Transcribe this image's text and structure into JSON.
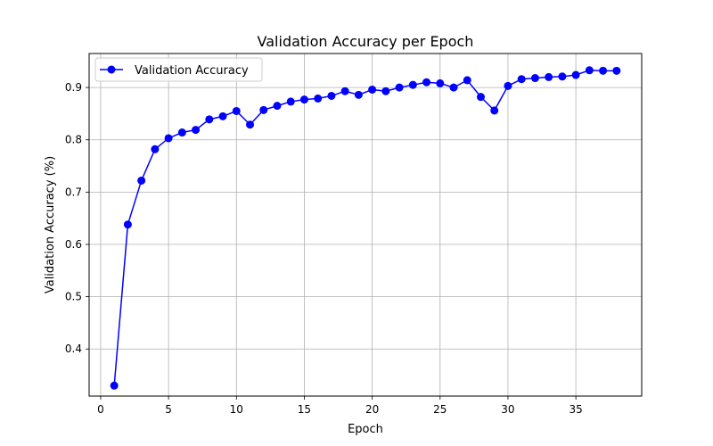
{
  "chart_data": {
    "type": "line",
    "title": "Validation Accuracy per Epoch",
    "xlabel": "Epoch",
    "ylabel": "Validation Accuracy (%)",
    "xlim": [
      -0.85,
      39.85
    ],
    "ylim": [
      0.31,
      0.965
    ],
    "xticks": [
      0,
      5,
      10,
      15,
      20,
      25,
      30,
      35
    ],
    "yticks": [
      0.4,
      0.5,
      0.6,
      0.7,
      0.8,
      0.9
    ],
    "ytick_labels": [
      "0.4",
      "0.5",
      "0.6",
      "0.7",
      "0.8",
      "0.9"
    ],
    "grid": true,
    "legend": "top-left",
    "series": [
      {
        "name": "Validation Accuracy",
        "color": "#0000ff",
        "marker": "circle",
        "x": [
          1,
          2,
          3,
          4,
          5,
          6,
          7,
          8,
          9,
          10,
          11,
          12,
          13,
          14,
          15,
          16,
          17,
          18,
          19,
          20,
          21,
          22,
          23,
          24,
          25,
          26,
          27,
          28,
          29,
          30,
          31,
          32,
          33,
          34,
          35,
          36,
          37,
          38
        ],
        "y": [
          0.33,
          0.638,
          0.722,
          0.782,
          0.803,
          0.814,
          0.819,
          0.839,
          0.845,
          0.855,
          0.829,
          0.857,
          0.865,
          0.873,
          0.877,
          0.879,
          0.884,
          0.893,
          0.886,
          0.896,
          0.893,
          0.9,
          0.905,
          0.91,
          0.908,
          0.9,
          0.914,
          0.882,
          0.856,
          0.903,
          0.916,
          0.918,
          0.92,
          0.921,
          0.924,
          0.933,
          0.932,
          0.932
        ]
      }
    ]
  }
}
